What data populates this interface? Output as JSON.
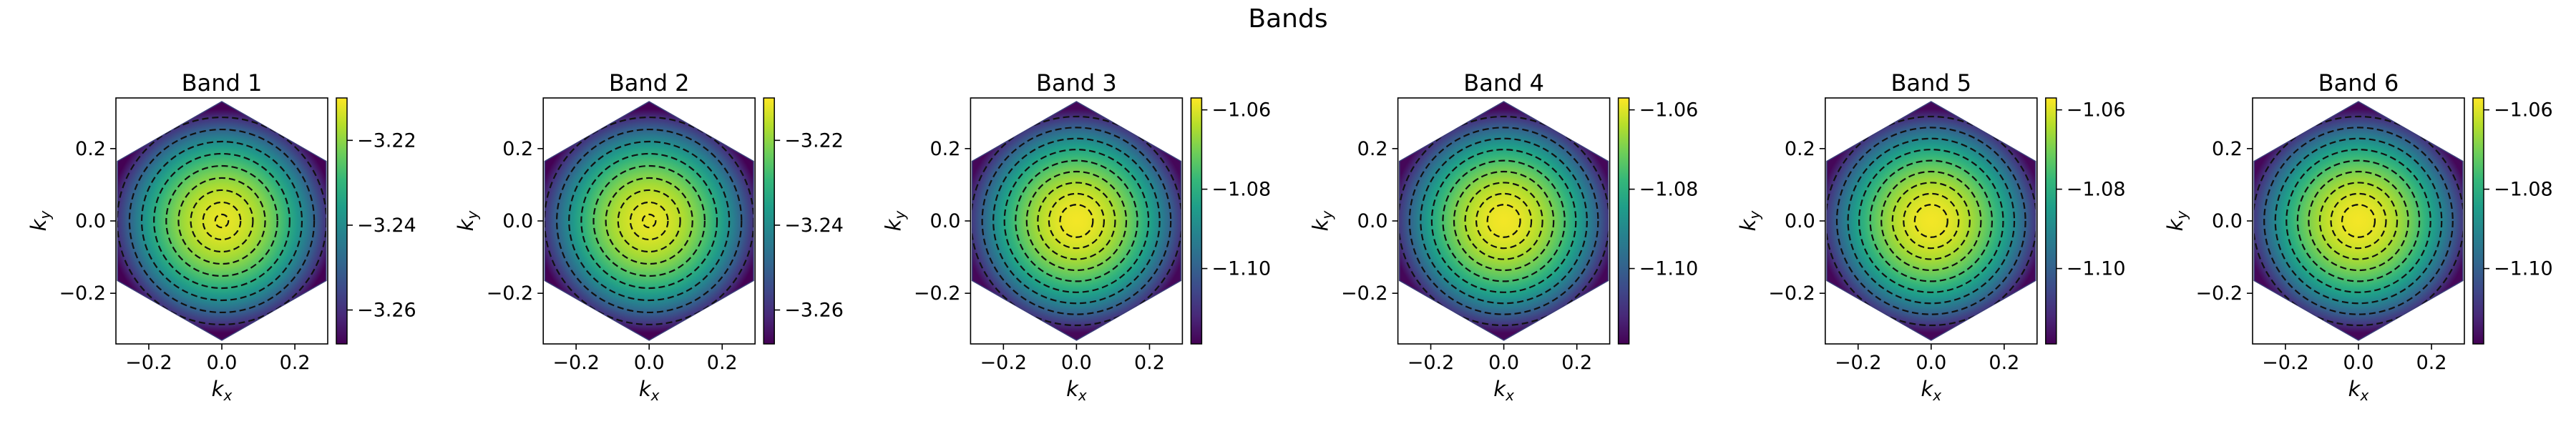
{
  "figure": {
    "suptitle": "Bands"
  },
  "chart_data": [
    {
      "type": "heatmap",
      "title": "Band 1",
      "xlabel": "k_x",
      "ylabel": "k_y",
      "xlim": [
        -0.29,
        0.29
      ],
      "ylim": [
        -0.34,
        0.34
      ],
      "xticks": [
        -0.2,
        0.0,
        0.2
      ],
      "yticks": [
        -0.2,
        0.0,
        0.2
      ],
      "center_value": -3.212,
      "edge_value": -3.268,
      "clim": [
        -3.268,
        -3.21
      ],
      "colorbar_ticks": [
        -3.22,
        -3.24,
        -3.26
      ],
      "colormap": "viridis",
      "contours": "dashed black",
      "mask": "hexagon"
    },
    {
      "type": "heatmap",
      "title": "Band 2",
      "xlabel": "k_x",
      "ylabel": "k_y",
      "xlim": [
        -0.29,
        0.29
      ],
      "ylim": [
        -0.34,
        0.34
      ],
      "xticks": [
        -0.2,
        0.0,
        0.2
      ],
      "yticks": [
        -0.2,
        0.0,
        0.2
      ],
      "center_value": -3.212,
      "edge_value": -3.268,
      "clim": [
        -3.268,
        -3.21
      ],
      "colorbar_ticks": [
        -3.22,
        -3.24,
        -3.26
      ],
      "colormap": "viridis",
      "contours": "dashed black",
      "mask": "hexagon"
    },
    {
      "type": "heatmap",
      "title": "Band 3",
      "xlabel": "k_x",
      "ylabel": "k_y",
      "xlim": [
        -0.29,
        0.29
      ],
      "ylim": [
        -0.34,
        0.34
      ],
      "xticks": [
        -0.2,
        0.0,
        0.2
      ],
      "yticks": [
        -0.2,
        0.0,
        0.2
      ],
      "center_value": -1.058,
      "edge_value": -1.118,
      "clim": [
        -1.119,
        -1.057
      ],
      "colorbar_ticks": [
        -1.06,
        -1.08,
        -1.1
      ],
      "colormap": "viridis",
      "contours": "dashed black",
      "mask": "hexagon"
    },
    {
      "type": "heatmap",
      "title": "Band 4",
      "xlabel": "k_x",
      "ylabel": "k_y",
      "xlim": [
        -0.29,
        0.29
      ],
      "ylim": [
        -0.34,
        0.34
      ],
      "xticks": [
        -0.2,
        0.0,
        0.2
      ],
      "yticks": [
        -0.2,
        0.0,
        0.2
      ],
      "center_value": -1.058,
      "edge_value": -1.118,
      "clim": [
        -1.119,
        -1.057
      ],
      "colorbar_ticks": [
        -1.06,
        -1.08,
        -1.1
      ],
      "colormap": "viridis",
      "contours": "dashed black",
      "mask": "hexagon"
    },
    {
      "type": "heatmap",
      "title": "Band 5",
      "xlabel": "k_x",
      "ylabel": "k_y",
      "xlim": [
        -0.29,
        0.29
      ],
      "ylim": [
        -0.34,
        0.34
      ],
      "xticks": [
        -0.2,
        0.0,
        0.2
      ],
      "yticks": [
        -0.2,
        0.0,
        0.2
      ],
      "center_value": -1.058,
      "edge_value": -1.118,
      "clim": [
        -1.119,
        -1.057
      ],
      "colorbar_ticks": [
        -1.06,
        -1.08,
        -1.1
      ],
      "colormap": "viridis",
      "contours": "dashed black",
      "mask": "hexagon"
    },
    {
      "type": "heatmap",
      "title": "Band 6",
      "xlabel": "k_x",
      "ylabel": "k_y",
      "xlim": [
        -0.29,
        0.29
      ],
      "ylim": [
        -0.34,
        0.34
      ],
      "xticks": [
        -0.2,
        0.0,
        0.2
      ],
      "yticks": [
        -0.2,
        0.0,
        0.2
      ],
      "center_value": -1.058,
      "edge_value": -1.118,
      "clim": [
        -1.119,
        -1.057
      ],
      "colorbar_ticks": [
        -1.06,
        -1.08,
        -1.1
      ],
      "colormap": "viridis",
      "contours": "dashed black",
      "mask": "hexagon"
    }
  ]
}
